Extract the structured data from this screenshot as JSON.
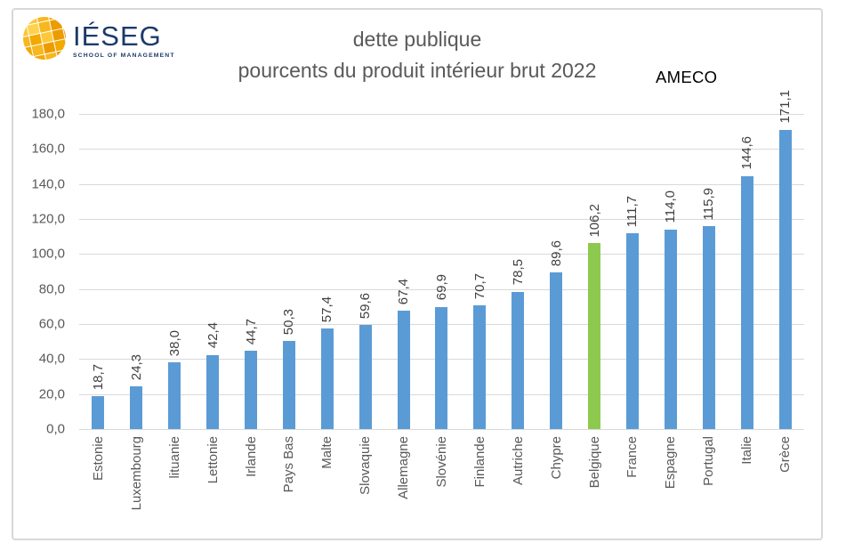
{
  "logo": {
    "icon": "ieseg-globe-icon",
    "brand": "IÉSEG",
    "tagline": "SCHOOL OF MANAGEMENT",
    "brand_color": "#1C3A6B",
    "globe_color": "#F2A900"
  },
  "header": {
    "title_line1": "dette publique",
    "title_line2": "pourcents du produit intérieur brut 2022",
    "source": "AMECO"
  },
  "chart_data": {
    "type": "bar",
    "title": "dette publique",
    "subtitle": "pourcents du produit intérieur brut 2022",
    "source": "AMECO",
    "categories": [
      "Estonie",
      "Luxembourg",
      "lituanie",
      "Lettonie",
      "Irlande",
      "Pays Bas",
      "Malte",
      "Slovaquie",
      "Allemagne",
      "Slovénie",
      "Finlande",
      "Autriche",
      "Chypre",
      "Belgique",
      "France",
      "Espagne",
      "Portugal",
      "Italie",
      "Grèce"
    ],
    "values": [
      18.7,
      24.3,
      38.0,
      42.4,
      44.7,
      50.3,
      57.4,
      59.6,
      67.4,
      69.9,
      70.7,
      78.5,
      89.6,
      106.2,
      111.7,
      114.0,
      115.9,
      144.6,
      171.1
    ],
    "value_labels": [
      "18,7",
      "24,3",
      "38,0",
      "42,4",
      "44,7",
      "50,3",
      "57,4",
      "59,6",
      "67,4",
      "69,9",
      "70,7",
      "78,5",
      "89,6",
      "106,2",
      "111,7",
      "114,0",
      "115,9",
      "144,6",
      "171,1"
    ],
    "highlight_index": 13,
    "highlight_category": "Belgique",
    "colors": {
      "bar": "#5B9BD5",
      "highlight": "#8DC94F",
      "grid": "#D9D9D9",
      "axis_text": "#595959",
      "value_text": "#3F3F3F"
    },
    "ylim": [
      0,
      180
    ],
    "ytick_step": 20,
    "ytick_labels": [
      "0,0",
      "20,0",
      "40,0",
      "60,0",
      "80,0",
      "100,0",
      "120,0",
      "140,0",
      "160,0",
      "180,0"
    ],
    "grid": true,
    "legend": "none",
    "bar_orientation": "vertical",
    "value_label_rotation": 90,
    "xtick_rotation": 90
  }
}
